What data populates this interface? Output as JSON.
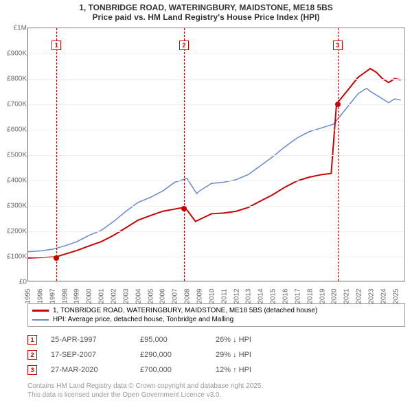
{
  "title_line1": "1, TONBRIDGE ROAD, WATERINGBURY, MAIDSTONE, ME18 5BS",
  "title_line2": "Price paid vs. HM Land Registry's House Price Index (HPI)",
  "chart": {
    "type": "line",
    "xlim": [
      1995,
      2025.8
    ],
    "ylim": [
      0,
      1000000
    ],
    "ytick_step": 100000,
    "yticks": [
      "£0",
      "£100K",
      "£200K",
      "£300K",
      "£400K",
      "£500K",
      "£600K",
      "£700K",
      "£800K",
      "£900K",
      "£1M"
    ],
    "xticks": [
      "1995",
      "1996",
      "1997",
      "1998",
      "1999",
      "2000",
      "2001",
      "2002",
      "2003",
      "2004",
      "2005",
      "2006",
      "2007",
      "2008",
      "2009",
      "2010",
      "2011",
      "2012",
      "2013",
      "2014",
      "2015",
      "2016",
      "2017",
      "2018",
      "2019",
      "2020",
      "2021",
      "2022",
      "2023",
      "2024",
      "2025"
    ],
    "background_color": "#ffffff",
    "grid_color": "#eeeeee",
    "series": [
      {
        "name": "price_paid",
        "color": "#cc0000",
        "width": 2,
        "label": "1, TONBRIDGE ROAD, WATERINGBURY, MAIDSTONE, ME18 5BS (detached house)",
        "points": [
          [
            1995,
            90000
          ],
          [
            1996,
            92000
          ],
          [
            1997.3,
            95000
          ],
          [
            1998,
            105000
          ],
          [
            1999,
            120000
          ],
          [
            2000,
            138000
          ],
          [
            2001,
            155000
          ],
          [
            2002,
            180000
          ],
          [
            2003,
            210000
          ],
          [
            2004,
            240000
          ],
          [
            2005,
            258000
          ],
          [
            2006,
            275000
          ],
          [
            2007.7,
            290000
          ],
          [
            2008,
            280000
          ],
          [
            2008.7,
            235000
          ],
          [
            2009,
            242000
          ],
          [
            2010,
            265000
          ],
          [
            2011,
            268000
          ],
          [
            2012,
            275000
          ],
          [
            2013,
            290000
          ],
          [
            2014,
            315000
          ],
          [
            2015,
            340000
          ],
          [
            2016,
            370000
          ],
          [
            2017,
            395000
          ],
          [
            2018,
            410000
          ],
          [
            2019,
            420000
          ],
          [
            2019.8,
            425000
          ],
          [
            2020.24,
            700000
          ],
          [
            2021,
            745000
          ],
          [
            2022,
            805000
          ],
          [
            2023,
            840000
          ],
          [
            2023.5,
            825000
          ],
          [
            2024,
            800000
          ],
          [
            2024.5,
            785000
          ],
          [
            2025,
            800000
          ],
          [
            2025.5,
            795000
          ]
        ]
      },
      {
        "name": "hpi",
        "color": "#6688cc",
        "width": 1.5,
        "label": "HPI: Average price, detached house, Tonbridge and Malling",
        "points": [
          [
            1995,
            115000
          ],
          [
            1996,
            118000
          ],
          [
            1997,
            125000
          ],
          [
            1998,
            138000
          ],
          [
            1999,
            155000
          ],
          [
            2000,
            180000
          ],
          [
            2001,
            200000
          ],
          [
            2002,
            235000
          ],
          [
            2003,
            275000
          ],
          [
            2004,
            310000
          ],
          [
            2005,
            330000
          ],
          [
            2006,
            355000
          ],
          [
            2007,
            390000
          ],
          [
            2008,
            405000
          ],
          [
            2008.8,
            345000
          ],
          [
            2009,
            355000
          ],
          [
            2010,
            385000
          ],
          [
            2011,
            390000
          ],
          [
            2012,
            400000
          ],
          [
            2013,
            420000
          ],
          [
            2014,
            455000
          ],
          [
            2015,
            490000
          ],
          [
            2016,
            530000
          ],
          [
            2017,
            565000
          ],
          [
            2018,
            590000
          ],
          [
            2019,
            605000
          ],
          [
            2020,
            620000
          ],
          [
            2021,
            680000
          ],
          [
            2022,
            740000
          ],
          [
            2022.7,
            762000
          ],
          [
            2023,
            750000
          ],
          [
            2024,
            720000
          ],
          [
            2024.5,
            705000
          ],
          [
            2025,
            720000
          ],
          [
            2025.5,
            715000
          ]
        ]
      }
    ],
    "markers": [
      {
        "n": "1",
        "x": 1997.31,
        "y": 95000,
        "color": "#cc0000"
      },
      {
        "n": "2",
        "x": 2007.71,
        "y": 290000,
        "color": "#cc0000"
      },
      {
        "n": "3",
        "x": 2020.24,
        "y": 700000,
        "color": "#cc0000"
      }
    ]
  },
  "sales": [
    {
      "n": "1",
      "date": "25-APR-1997",
      "price": "£95,000",
      "diff": "26% ↓ HPI",
      "color": "#cc0000"
    },
    {
      "n": "2",
      "date": "17-SEP-2007",
      "price": "£290,000",
      "diff": "29% ↓ HPI",
      "color": "#cc0000"
    },
    {
      "n": "3",
      "date": "27-MAR-2020",
      "price": "£700,000",
      "diff": "12% ↑ HPI",
      "color": "#cc0000"
    }
  ],
  "footer_line1": "Contains HM Land Registry data © Crown copyright and database right 2025.",
  "footer_line2": "This data is licensed under the Open Government Licence v3.0."
}
